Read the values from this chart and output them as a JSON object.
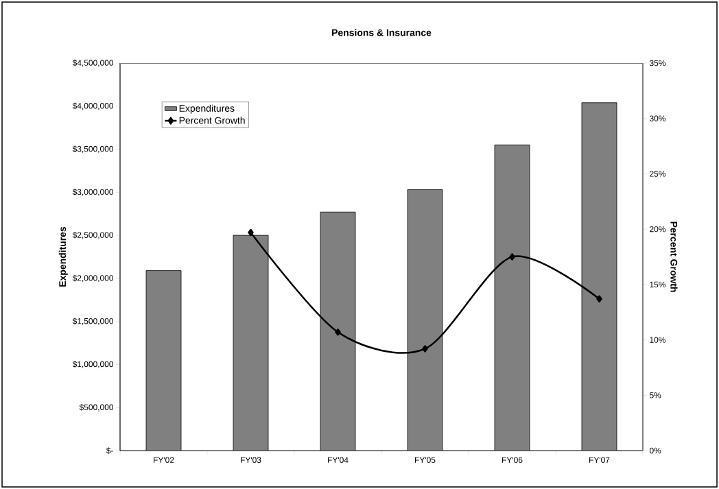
{
  "chart_data": {
    "type": "bar",
    "title": "Pensions & Insurance",
    "ylabel": "Expenditures",
    "y2label": "Percent Growth",
    "categories": [
      "FY'02",
      "FY'03",
      "FY'04",
      "FY'05",
      "FY'06",
      "FY'07"
    ],
    "series": [
      {
        "name": "Expenditures",
        "color": "#808080",
        "values": [
          2090000,
          2500000,
          2770000,
          3030000,
          3550000,
          4040000
        ]
      },
      {
        "name": "Percent Growth",
        "type": "line",
        "axis": "y2",
        "color": "#000000",
        "values": [
          null,
          19.7,
          10.7,
          9.2,
          17.5,
          13.7
        ]
      }
    ],
    "ylim": [
      0,
      4500000
    ],
    "yticks": [
      {
        "value": 0,
        "label": "$-"
      },
      {
        "value": 500000,
        "label": "$500,000"
      },
      {
        "value": 1000000,
        "label": "$1,000,000"
      },
      {
        "value": 1500000,
        "label": "$1,500,000"
      },
      {
        "value": 2000000,
        "label": "$2,000,000"
      },
      {
        "value": 2500000,
        "label": "$2,500,000"
      },
      {
        "value": 3000000,
        "label": "$3,000,000"
      },
      {
        "value": 3500000,
        "label": "$3,500,000"
      },
      {
        "value": 4000000,
        "label": "$4,000,000"
      },
      {
        "value": 4500000,
        "label": "$4,500,000"
      }
    ],
    "y2lim": [
      0,
      35
    ],
    "y2ticks": [
      {
        "value": 0,
        "label": "0%"
      },
      {
        "value": 5,
        "label": "5%"
      },
      {
        "value": 10,
        "label": "10%"
      },
      {
        "value": 15,
        "label": "15%"
      },
      {
        "value": 20,
        "label": "20%"
      },
      {
        "value": 25,
        "label": "25%"
      },
      {
        "value": 30,
        "label": "30%"
      },
      {
        "value": 35,
        "label": "35%"
      }
    ],
    "legend": "top left",
    "marker": "diamond",
    "grid": false
  }
}
